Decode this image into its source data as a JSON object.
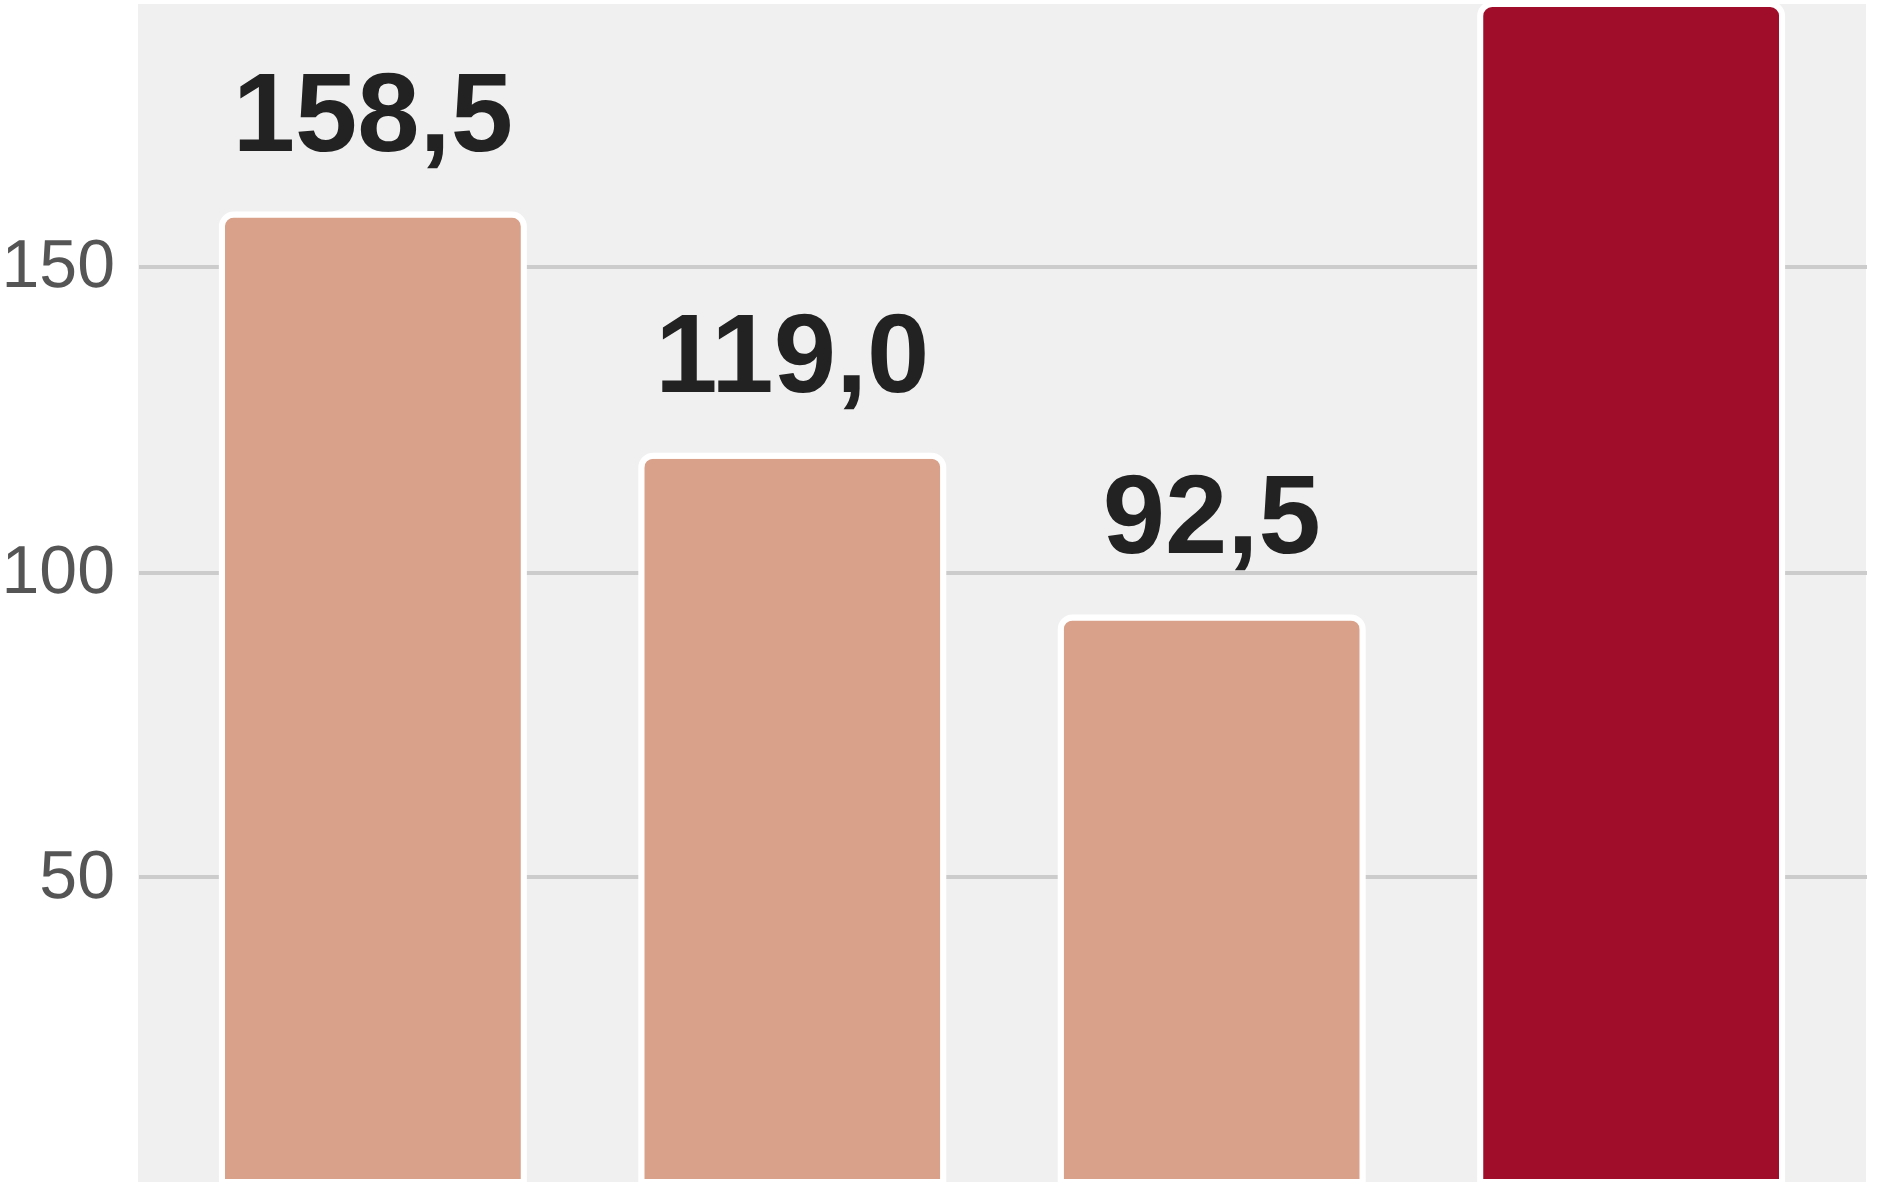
{
  "chart_data": {
    "type": "bar",
    "categories": [
      null,
      null,
      null,
      null
    ],
    "values": [
      158.5,
      119.0,
      92.5,
      193
    ],
    "value_labels": [
      "158,5",
      "119,0",
      "92,5",
      null
    ],
    "colors": [
      "#d9a08a",
      "#d9a08a",
      "#d9a08a",
      "#a00d2a"
    ],
    "ylim": [
      0,
      193
    ],
    "yticks": [
      50,
      100,
      150
    ],
    "grid": "y",
    "tick_labels": "y"
  }
}
